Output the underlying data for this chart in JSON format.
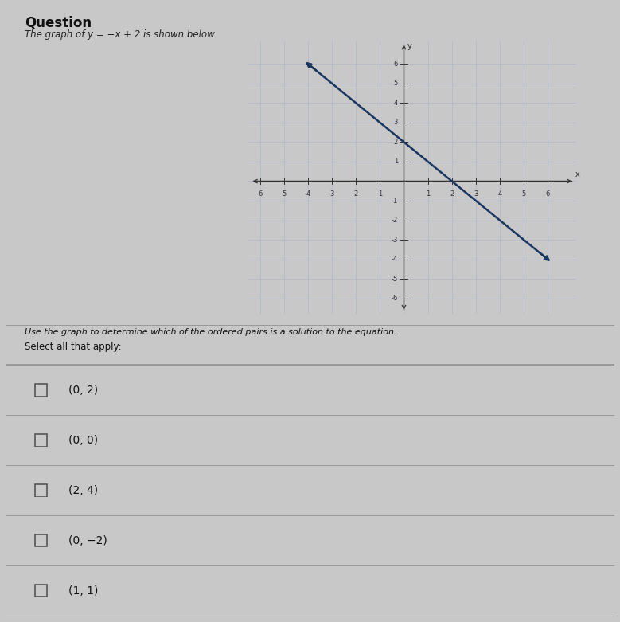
{
  "title": "Question",
  "subtitle": "The graph of y = −x + 2 is shown below.",
  "xlim": [
    -6.5,
    7.2
  ],
  "ylim": [
    -6.8,
    7.2
  ],
  "xticks": [
    -6,
    -5,
    -4,
    -3,
    -2,
    -1,
    1,
    2,
    3,
    4,
    5,
    6
  ],
  "yticks": [
    -6,
    -5,
    -4,
    -3,
    -2,
    -1,
    1,
    2,
    3,
    4,
    5,
    6
  ],
  "line_x1": -4,
  "line_y1": 6,
  "line_x2": 6,
  "line_y2": -4,
  "line_color": "#1a3560",
  "line_width": 1.8,
  "grid_color": "#b0b8c8",
  "axis_color": "#333333",
  "bg_color": "#c8c8c8",
  "plot_area_color": "#d4d8e0",
  "choices": [
    "(0, 2)",
    "(0, 0)",
    "(2, 4)",
    "(0, −2)",
    "(1, 1)"
  ],
  "select_text": "Select all that apply:",
  "use_graph_text": "Use the graph to determine which of the ordered pairs is a solution to the equation.",
  "title_fontsize": 12,
  "subtitle_fontsize": 8.5,
  "tick_fontsize": 6,
  "choice_fontsize": 10,
  "use_graph_fontsize": 8,
  "select_fontsize": 8.5
}
